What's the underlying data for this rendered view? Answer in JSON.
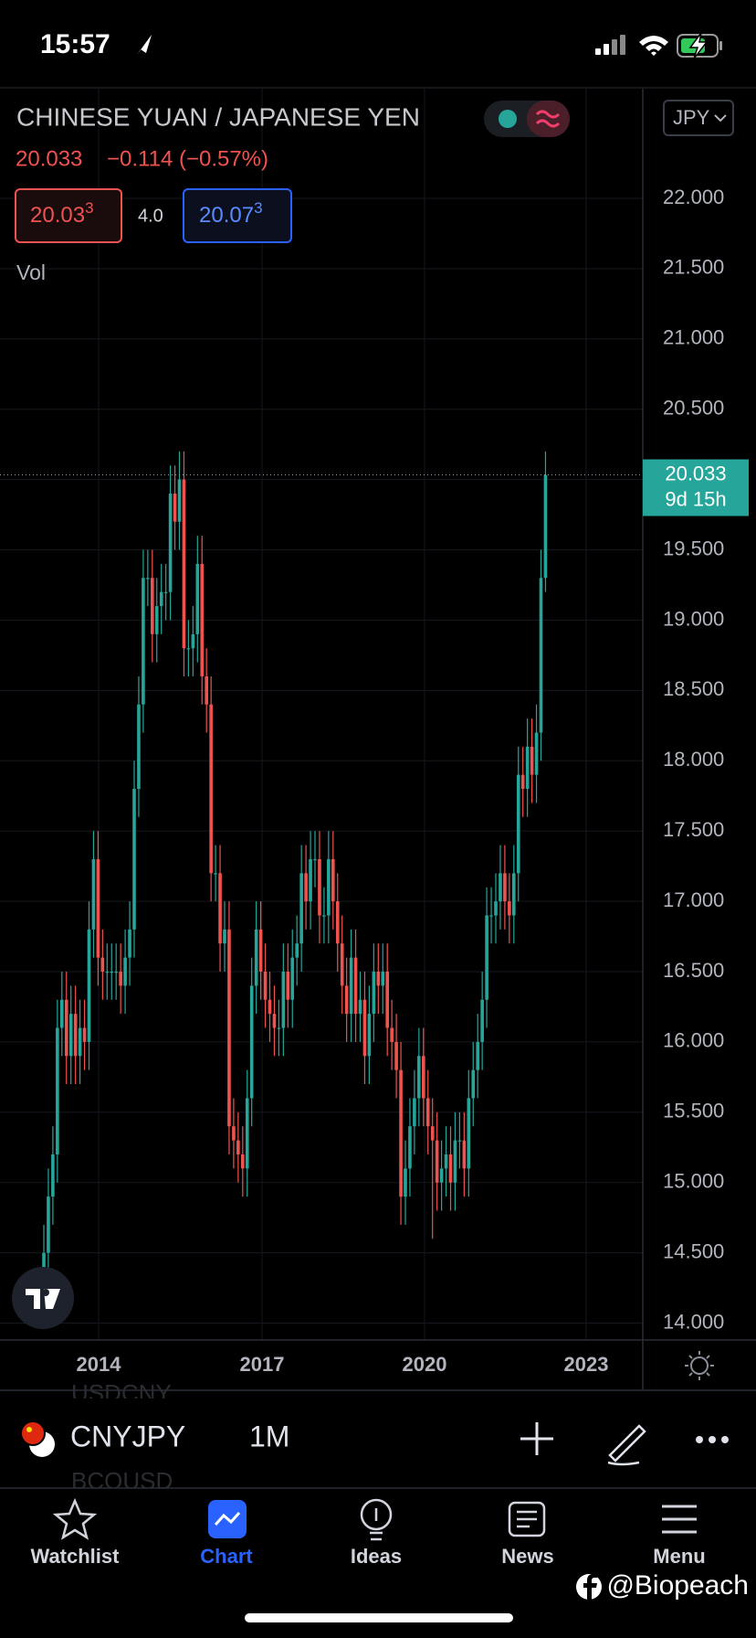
{
  "status_bar": {
    "time": "15:57"
  },
  "header": {
    "title": "CHINESE YUAN / JAPANESE YEN",
    "currency": "JPY",
    "price": "20.033",
    "change": "−0.114 (−0.57%)",
    "bid": {
      "main": "20.03",
      "pip": "3"
    },
    "spread": "4.0",
    "ask": {
      "main": "20.07",
      "pip": "3"
    },
    "volume_label": "Vol"
  },
  "chart_data": {
    "type": "candlestick",
    "up_color": "#26a69a",
    "down_color": "#ef5350",
    "grid": true,
    "ylim": [
      13.88,
      22.78
    ],
    "yticks": [
      {
        "value": 14,
        "label": "14.000"
      },
      {
        "value": 14.5,
        "label": "14.500"
      },
      {
        "value": 15,
        "label": "15.000"
      },
      {
        "value": 15.5,
        "label": "15.500"
      },
      {
        "value": 16,
        "label": "16.000"
      },
      {
        "value": 16.5,
        "label": "16.500"
      },
      {
        "value": 17,
        "label": "17.000"
      },
      {
        "value": 17.5,
        "label": "17.500"
      },
      {
        "value": 18,
        "label": "18.000"
      },
      {
        "value": 18.5,
        "label": "18.500"
      },
      {
        "value": 19,
        "label": "19.000"
      },
      {
        "value": 19.5,
        "label": "19.500"
      },
      {
        "value": 20,
        "label": "20.000"
      },
      {
        "value": 20.5,
        "label": "20.500"
      },
      {
        "value": 21,
        "label": "21.000"
      },
      {
        "value": 21.5,
        "label": "21.500"
      },
      {
        "value": 22,
        "label": "22.000"
      }
    ],
    "x_labels": [
      "2014",
      "2017",
      "2020",
      "2023"
    ],
    "last_price": 20.033,
    "countdown": "9d 15h",
    "open": [
      14.3,
      14.5,
      14.9,
      15.2,
      16.1,
      16.3,
      15.9,
      16.2,
      15.9,
      16.1,
      16.0,
      16.8,
      17.3,
      16.6,
      16.5,
      16.5,
      16.5,
      16.5,
      16.4,
      16.6,
      16.8,
      17.8,
      18.4,
      19.3,
      19.3,
      18.9,
      19.1,
      19.2,
      19.2,
      19.9,
      19.7,
      20.0,
      18.8,
      18.8,
      18.9,
      19.4,
      18.6,
      18.4,
      17.2,
      17.2,
      16.7,
      16.8,
      15.4,
      15.3,
      15.2,
      15.1,
      15.6,
      16.4,
      16.8,
      16.5,
      16.3,
      16.2,
      16.1,
      16.1,
      16.5,
      16.3,
      16.6,
      16.7,
      17.2,
      17.0,
      17.3,
      17.3,
      16.9,
      16.9,
      17.3,
      17.0,
      16.7,
      16.4,
      16.2,
      16.6,
      16.2,
      16.3,
      15.9,
      16.2,
      16.5,
      16.4,
      16.5,
      16.1,
      16.0,
      15.8,
      14.9,
      15.1,
      15.4,
      15.6,
      15.9,
      15.6,
      15.4,
      15.3,
      15.0,
      15.1,
      15.2,
      15.0,
      15.3,
      15.3,
      15.1,
      15.6,
      15.8,
      16.0,
      16.3,
      16.9,
      16.9,
      17.0,
      17.2,
      17.0,
      16.9,
      17.2,
      17.9,
      17.8,
      18.1,
      17.9,
      18.2,
      19.3
    ],
    "high": [
      14.7,
      15.1,
      15.4,
      16.3,
      16.5,
      16.5,
      16.4,
      16.4,
      16.3,
      16.3,
      17.0,
      17.5,
      17.5,
      16.8,
      16.7,
      16.7,
      16.7,
      16.7,
      16.8,
      17.0,
      18.0,
      18.6,
      19.5,
      19.5,
      19.5,
      19.3,
      19.4,
      19.4,
      20.1,
      20.1,
      20.2,
      20.2,
      19.0,
      19.1,
      19.6,
      19.6,
      18.8,
      18.6,
      17.4,
      17.4,
      17.0,
      17.0,
      15.6,
      15.5,
      15.4,
      15.8,
      16.6,
      17.0,
      17.0,
      16.7,
      16.5,
      16.4,
      16.3,
      16.7,
      16.7,
      16.8,
      16.9,
      17.4,
      17.4,
      17.5,
      17.5,
      17.5,
      17.1,
      17.5,
      17.5,
      17.2,
      16.9,
      16.6,
      16.8,
      16.8,
      16.5,
      16.5,
      16.4,
      16.7,
      16.7,
      16.7,
      16.7,
      16.3,
      16.2,
      16.0,
      15.3,
      15.6,
      15.8,
      16.1,
      16.1,
      15.8,
      15.6,
      15.5,
      15.3,
      15.4,
      15.4,
      15.5,
      15.5,
      15.5,
      15.8,
      16.0,
      16.2,
      16.5,
      17.1,
      17.1,
      17.2,
      17.4,
      17.4,
      17.2,
      17.4,
      18.1,
      18.1,
      18.3,
      18.3,
      18.4,
      19.5,
      20.2
    ],
    "low": [
      14.1,
      14.3,
      14.7,
      15.0,
      15.9,
      15.7,
      15.7,
      15.7,
      15.7,
      15.8,
      15.8,
      16.6,
      16.4,
      16.3,
      16.3,
      16.3,
      16.3,
      16.2,
      16.2,
      16.4,
      16.6,
      17.6,
      18.2,
      19.1,
      18.7,
      18.7,
      18.9,
      19.0,
      19.0,
      19.5,
      19.5,
      18.6,
      18.6,
      18.6,
      18.7,
      18.4,
      18.2,
      17.0,
      17.0,
      16.5,
      16.5,
      15.2,
      15.1,
      15.0,
      14.9,
      14.9,
      15.4,
      16.2,
      16.3,
      16.1,
      16.0,
      15.9,
      15.9,
      15.9,
      16.1,
      16.1,
      16.4,
      16.5,
      16.8,
      16.8,
      17.1,
      16.7,
      16.7,
      16.7,
      16.8,
      16.5,
      16.2,
      16.0,
      16.0,
      16.0,
      16.0,
      15.7,
      15.7,
      16.0,
      16.2,
      16.2,
      15.9,
      15.8,
      15.6,
      14.7,
      14.7,
      14.9,
      15.2,
      15.4,
      15.4,
      15.2,
      14.6,
      14.8,
      14.8,
      14.9,
      14.8,
      14.8,
      15.1,
      14.9,
      14.9,
      15.4,
      15.6,
      15.8,
      16.1,
      16.7,
      16.7,
      16.8,
      16.8,
      16.7,
      16.7,
      17.0,
      17.6,
      17.6,
      17.7,
      17.7,
      18.0,
      19.2
    ],
    "close": [
      14.5,
      14.9,
      15.2,
      16.1,
      16.3,
      15.9,
      16.2,
      15.9,
      16.1,
      16.0,
      16.8,
      17.3,
      16.6,
      16.5,
      16.5,
      16.5,
      16.5,
      16.4,
      16.6,
      16.8,
      17.8,
      18.4,
      19.3,
      19.3,
      18.9,
      19.1,
      19.2,
      19.2,
      19.9,
      19.7,
      20.0,
      18.8,
      18.8,
      18.9,
      19.4,
      18.6,
      18.4,
      17.2,
      17.2,
      16.7,
      16.8,
      15.4,
      15.3,
      15.2,
      15.1,
      15.6,
      16.4,
      16.8,
      16.5,
      16.3,
      16.2,
      16.1,
      16.1,
      16.5,
      16.3,
      16.6,
      16.7,
      17.2,
      17.0,
      17.3,
      17.3,
      16.9,
      16.9,
      17.3,
      17.0,
      16.7,
      16.4,
      16.2,
      16.6,
      16.2,
      16.3,
      15.9,
      16.2,
      16.5,
      16.4,
      16.5,
      16.1,
      16.0,
      15.8,
      14.9,
      15.1,
      15.4,
      15.6,
      15.9,
      15.6,
      15.4,
      15.3,
      15.0,
      15.1,
      15.2,
      15.0,
      15.3,
      15.3,
      15.1,
      15.6,
      15.8,
      16.0,
      16.3,
      16.9,
      16.9,
      17.0,
      17.2,
      17.0,
      16.9,
      17.2,
      17.9,
      17.8,
      18.1,
      17.9,
      18.2,
      19.3,
      20.033
    ]
  },
  "toolbar": {
    "symbol": "CNYJPY",
    "interval": "1M",
    "prev_symbol": "USDCNY",
    "next_symbol": "BCOUSD"
  },
  "tabs": [
    "Watchlist",
    "Chart",
    "Ideas",
    "News",
    "Menu"
  ],
  "watermark": "@Biopeach"
}
